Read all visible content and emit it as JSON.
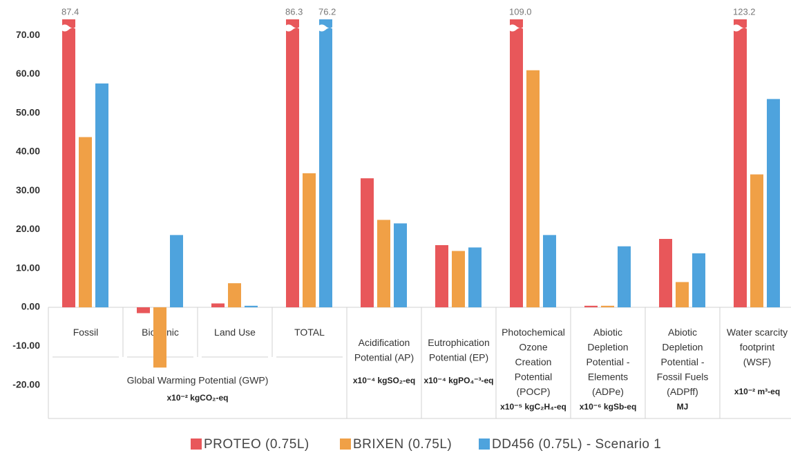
{
  "chart_data": {
    "type": "bar",
    "categories": [
      "Fossil",
      "Biogenic",
      "Land Use",
      "TOTAL",
      "Acidification\nPotential  (AP)",
      "Eutrophication\nPotential (EP)",
      "Photochemical\nOzone\nCreation\nPotential\n(POCP)",
      "Abiotic\nDepletion\nPotential -\nElements\n(ADPe)",
      "Abiotic\nDepletion\nPotential -\nFossil Fuels\n(ADPff)",
      "Water scarcity\nfootprint\n(WSF)"
    ],
    "units": [
      null,
      null,
      null,
      null,
      "x10⁻⁴ kgSO₂-eq",
      "x10⁻⁴ kgPO₄⁻³-eq",
      "x10⁻⁵ kgC₂H₄-eq",
      "x10⁻⁶ kgSb-eq",
      "MJ",
      "x10⁻² m³-eq"
    ],
    "group_label": "Global Warming Potential (GWP)",
    "group_unit": "x10⁻² kgCO₂-eq",
    "series": [
      {
        "name": "PROTEO (0.75L)",
        "color": "#e8575a",
        "values": [
          87.4,
          -1.5,
          1.0,
          86.3,
          33.2,
          16.0,
          109.0,
          0.4,
          17.6,
          123.2
        ],
        "value_labels": [
          "87.4",
          null,
          null,
          "86.3",
          null,
          null,
          "109.0",
          null,
          null,
          "123.2"
        ]
      },
      {
        "name": "BRIXEN (0.75L)",
        "color": "#f0a046",
        "values": [
          43.8,
          -15.5,
          6.2,
          34.5,
          22.5,
          14.5,
          61.0,
          0.4,
          6.5,
          34.2
        ],
        "value_labels": [
          null,
          null,
          null,
          null,
          null,
          null,
          null,
          null,
          null,
          null
        ]
      },
      {
        "name": "DD456 (0.75L) - Scenario 1",
        "color": "#4ea3dd",
        "values": [
          57.6,
          18.6,
          0.4,
          76.2,
          21.6,
          15.4,
          18.6,
          15.7,
          13.9,
          53.6
        ],
        "value_labels": [
          null,
          null,
          null,
          "76.2",
          null,
          null,
          null,
          null,
          null,
          null
        ]
      }
    ],
    "ylim": [
      -28.6,
      74.1
    ],
    "yticks": [
      {
        "value": -20,
        "label": "-20.00"
      },
      {
        "value": -10,
        "label": "-10.00"
      },
      {
        "value": 0,
        "label": "0.00"
      },
      {
        "value": 10,
        "label": "10.00"
      },
      {
        "value": 20,
        "label": "20.00"
      },
      {
        "value": 30,
        "label": "30.00"
      },
      {
        "value": 40,
        "label": "40.00"
      },
      {
        "value": 50,
        "label": "50.00"
      },
      {
        "value": 60,
        "label": "60.00"
      },
      {
        "value": 70,
        "label": "70.00"
      }
    ],
    "legend": "bottom"
  }
}
